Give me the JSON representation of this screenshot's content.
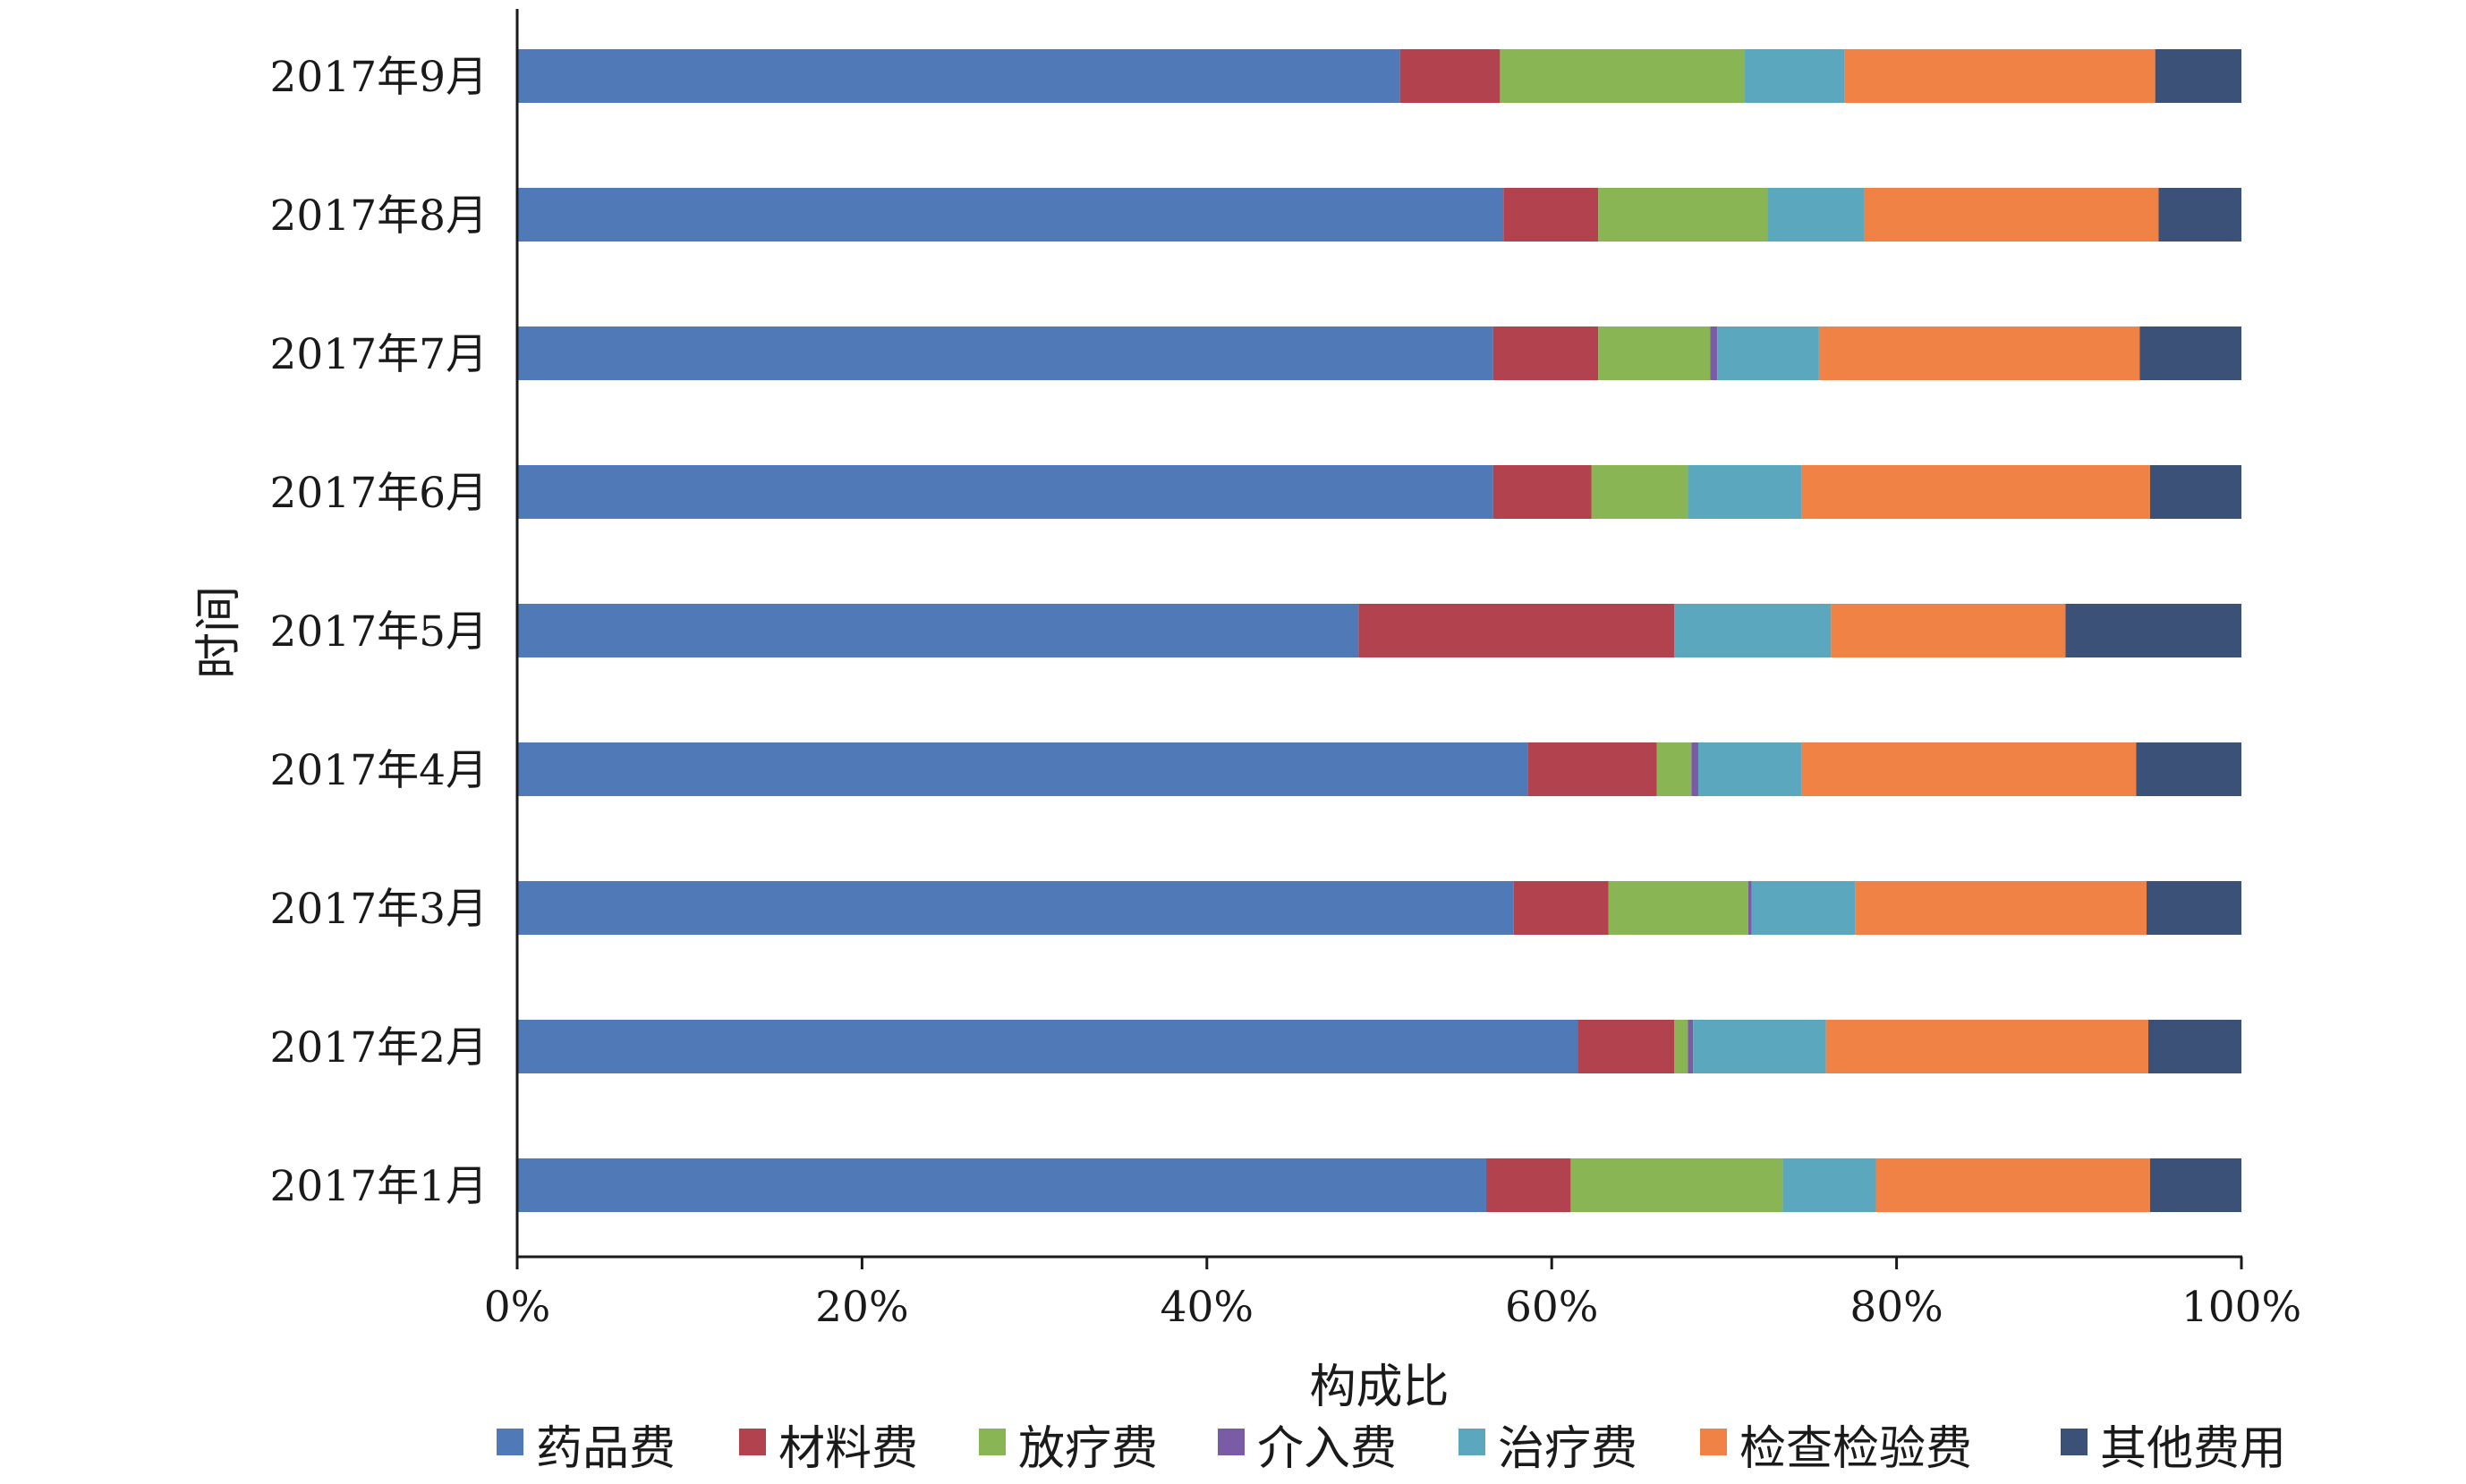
{
  "chart_data": {
    "type": "bar",
    "orientation": "horizontal",
    "stacked": "percent",
    "title": "",
    "xlabel": "构成比",
    "ylabel": "时间",
    "xlim": [
      0,
      100
    ],
    "x_ticks": [
      "0%",
      "20%",
      "40%",
      "60%",
      "80%",
      "100%"
    ],
    "categories": [
      "2017年1月",
      "2017年2月",
      "2017年3月",
      "2017年4月",
      "2017年5月",
      "2017年6月",
      "2017年7月",
      "2017年8月",
      "2017年9月"
    ],
    "grid": false,
    "legend_position": "bottom",
    "series": [
      {
        "name": "药品费",
        "color": "#5079B8",
        "values": [
          56.2,
          61.5,
          57.8,
          58.6,
          48.8,
          56.6,
          56.6,
          57.2,
          51.2
        ]
      },
      {
        "name": "材料费",
        "color": "#B3424F",
        "values": [
          4.9,
          5.6,
          5.5,
          7.5,
          18.3,
          5.7,
          6.1,
          5.5,
          5.8
        ]
      },
      {
        "name": "放疗费",
        "color": "#8AB554",
        "values": [
          12.3,
          0.8,
          8.1,
          2.0,
          0.0,
          5.6,
          6.5,
          9.8,
          14.2
        ]
      },
      {
        "name": "介入费",
        "color": "#7A5BA6",
        "values": [
          0.0,
          0.3,
          0.2,
          0.4,
          0.0,
          0.0,
          0.4,
          0.0,
          0.0
        ]
      },
      {
        "name": "治疗费",
        "color": "#5BA8BE",
        "values": [
          5.4,
          7.7,
          6.0,
          6.0,
          9.1,
          6.6,
          5.9,
          5.6,
          5.8
        ]
      },
      {
        "name": "检查检验费",
        "color": "#EF8244",
        "values": [
          15.9,
          18.7,
          16.9,
          19.4,
          13.6,
          20.2,
          18.6,
          17.1,
          18.0
        ]
      },
      {
        "name": "其他费用",
        "color": "#3B5178",
        "values": [
          5.3,
          5.4,
          5.5,
          6.1,
          10.2,
          5.3,
          5.9,
          4.8,
          5.0
        ]
      }
    ]
  }
}
